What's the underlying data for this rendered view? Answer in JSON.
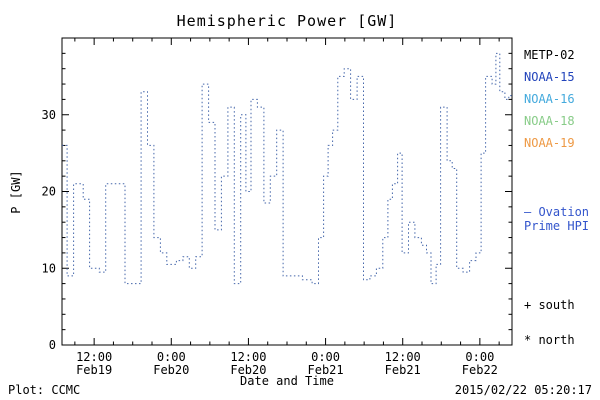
{
  "title": "Hemispheric Power [GW]",
  "axes": {
    "ylabel": "P [GW]",
    "xlabel": "Date and Time",
    "y_ticks": [
      0,
      10,
      20,
      30
    ],
    "x_ticks": [
      {
        "time": "12:00",
        "date": "Feb19",
        "hour": 12
      },
      {
        "time": "0:00",
        "date": "Feb20",
        "hour": 24
      },
      {
        "time": "12:00",
        "date": "Feb20",
        "hour": 36
      },
      {
        "time": "0:00",
        "date": "Feb21",
        "hour": 48
      },
      {
        "time": "12:00",
        "date": "Feb21",
        "hour": 60
      },
      {
        "time": "0:00",
        "date": "Feb22",
        "hour": 72
      }
    ],
    "frame_color": "#000000"
  },
  "legend": {
    "satellites": [
      {
        "label": "METP-02",
        "color": "#000000"
      },
      {
        "label": "NOAA-15",
        "color": "#2244bb"
      },
      {
        "label": "NOAA-16",
        "color": "#44aadd"
      },
      {
        "label": "NOAA-18",
        "color": "#88cc88"
      },
      {
        "label": "NOAA-19",
        "color": "#ee9944"
      }
    ],
    "model_label_line1": "– Ovation",
    "model_label_line2": "Prime HPI",
    "model_color": "#3355cc",
    "south_label": "+ south",
    "north_label": "* north"
  },
  "footer": {
    "left": "Plot: CCMC",
    "right": "2015/02/22 05:20:17"
  },
  "chart_data": {
    "type": "line",
    "line_style": "dotted-step",
    "color": "#4466aa",
    "title": "Hemispheric Power [GW]",
    "xlabel": "Date and Time",
    "ylabel": "P [GW]",
    "x_reference": "hours since 2015 Feb19 00:00 UT",
    "xlim": [
      7,
      77
    ],
    "ylim": [
      0,
      40
    ],
    "grid": false,
    "legend_position": "right",
    "series": [
      {
        "name": "Ovation Prime HPI",
        "x_hours": [
          7.0,
          7.8,
          8.8,
          10.3,
          11.3,
          12.8,
          13.8,
          15.3,
          16.8,
          18.3,
          19.3,
          20.3,
          21.3,
          22.3,
          23.3,
          24.8,
          25.8,
          26.8,
          27.8,
          28.8,
          29.8,
          30.8,
          31.8,
          32.8,
          33.8,
          34.8,
          35.6,
          36.4,
          37.4,
          38.4,
          39.4,
          40.4,
          41.4,
          42.9,
          44.4,
          45.9,
          46.9,
          47.7,
          48.4,
          49.1,
          49.9,
          50.9,
          51.9,
          52.9,
          53.9,
          54.9,
          55.9,
          56.9,
          57.7,
          58.4,
          59.2,
          59.9,
          60.9,
          61.9,
          62.9,
          63.7,
          64.4,
          65.2,
          65.9,
          66.9,
          67.7,
          68.4,
          69.4,
          70.4,
          71.4,
          72.2,
          72.9,
          73.9,
          74.5,
          75.1,
          75.9,
          76.5
        ],
        "y_gw": [
          26,
          9,
          21,
          19,
          10,
          9.5,
          21,
          21,
          8,
          8,
          33,
          26,
          14,
          12,
          10.5,
          11,
          11.5,
          10,
          11.5,
          34,
          29,
          15,
          22,
          31,
          8,
          30,
          20,
          32,
          31,
          18.5,
          22,
          28,
          9,
          9,
          8.5,
          8,
          14,
          22,
          26,
          28,
          35,
          36,
          32,
          35,
          8.5,
          9,
          10,
          14,
          19,
          21,
          25,
          12,
          16,
          14,
          13,
          12,
          8,
          10.5,
          31,
          24,
          23,
          10,
          9.5,
          11,
          12,
          25,
          35,
          34,
          38,
          33,
          32,
          32.5
        ]
      }
    ]
  }
}
